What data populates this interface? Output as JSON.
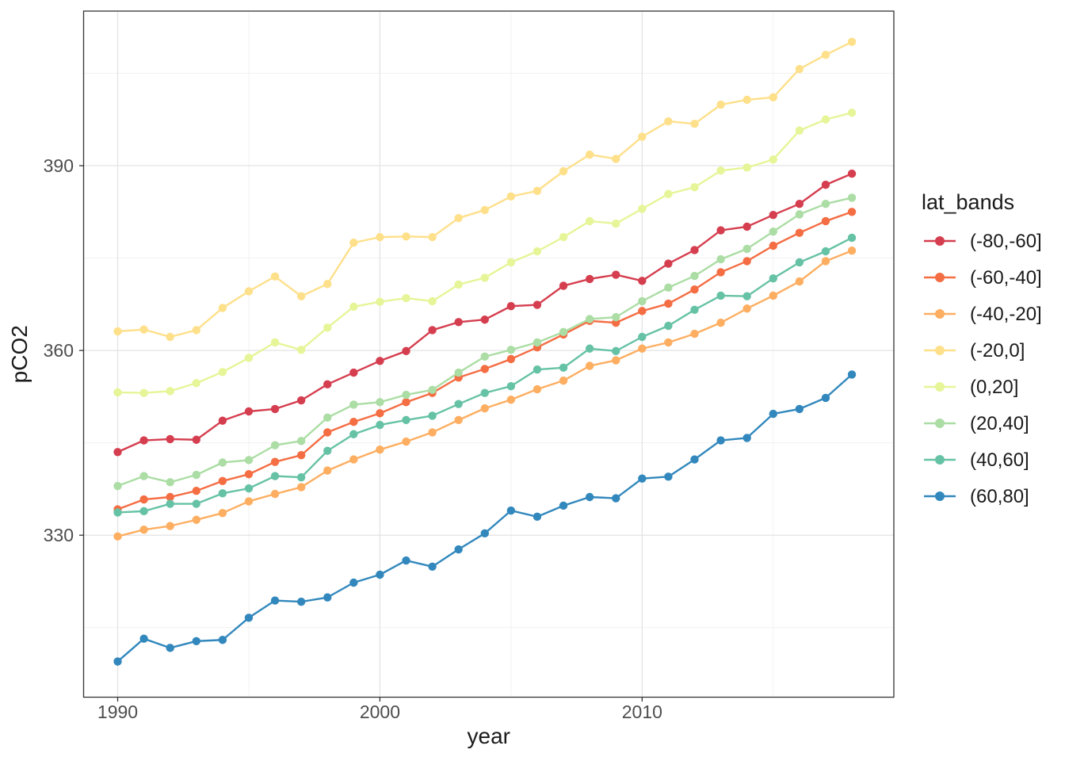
{
  "chart_data": {
    "type": "line",
    "title": "",
    "xlabel": "year",
    "ylabel": "pCO2",
    "legend_title": "lat_bands",
    "legend_position": "right",
    "grid": "major+minor",
    "x_ticks": [
      1990,
      2000,
      2010
    ],
    "x_tick_labels": [
      "1990",
      "2000",
      "2010"
    ],
    "y_ticks": [
      330,
      360,
      390
    ],
    "y_tick_labels": [
      "330",
      "360",
      "390"
    ],
    "x_minor_ticks": [
      1995,
      2005,
      2015
    ],
    "y_minor_ticks": [
      315,
      345,
      375,
      405
    ],
    "xlim": [
      1988.7,
      2019.6
    ],
    "ylim": [
      303.7,
      415.1
    ],
    "x": [
      1990,
      1991,
      1992,
      1993,
      1994,
      1995,
      1996,
      1997,
      1998,
      1999,
      2000,
      2001,
      2002,
      2003,
      2004,
      2005,
      2006,
      2007,
      2008,
      2009,
      2010,
      2011,
      2012,
      2013,
      2014,
      2015,
      2016,
      2017,
      2018
    ],
    "series": [
      {
        "name": "(-80,-60]",
        "color": "#d53e4f",
        "values": [
          343.5,
          345.4,
          345.6,
          345.5,
          348.6,
          350.1,
          350.5,
          351.9,
          354.5,
          356.4,
          358.3,
          359.9,
          363.3,
          364.6,
          365.0,
          367.2,
          367.4,
          370.5,
          371.6,
          372.3,
          371.3,
          374.1,
          376.3,
          379.5,
          380.1,
          382.0,
          383.8,
          386.9,
          388.7
        ]
      },
      {
        "name": "(-60,-40]",
        "color": "#f46d43",
        "values": [
          334.2,
          335.8,
          336.2,
          337.2,
          338.8,
          339.9,
          341.9,
          343.0,
          346.7,
          348.4,
          349.8,
          351.6,
          353.1,
          355.6,
          357.0,
          358.6,
          360.5,
          362.6,
          364.8,
          364.5,
          366.4,
          367.6,
          369.9,
          372.7,
          374.5,
          377.0,
          379.1,
          381.0,
          382.5
        ]
      },
      {
        "name": "(-40,-20]",
        "color": "#fdae61",
        "values": [
          329.8,
          330.9,
          331.5,
          332.5,
          333.6,
          335.5,
          336.7,
          337.8,
          340.5,
          342.3,
          343.9,
          345.2,
          346.7,
          348.7,
          350.6,
          352.0,
          353.7,
          355.1,
          357.5,
          358.4,
          360.3,
          361.3,
          362.7,
          364.5,
          366.8,
          368.9,
          371.2,
          374.5,
          376.2
        ]
      },
      {
        "name": "(-20,0]",
        "color": "#fee08b",
        "values": [
          363.1,
          363.4,
          362.2,
          363.3,
          366.9,
          369.6,
          372.0,
          368.8,
          370.8,
          377.5,
          378.4,
          378.5,
          378.4,
          381.5,
          382.8,
          385.0,
          385.9,
          389.1,
          391.8,
          391.1,
          394.7,
          397.2,
          396.8,
          399.9,
          400.7,
          401.1,
          405.7,
          408.0,
          410.1
        ]
      },
      {
        "name": "(0,20]",
        "color": "#e6f598",
        "values": [
          353.2,
          353.1,
          353.4,
          354.7,
          356.5,
          358.8,
          361.3,
          360.1,
          363.7,
          367.1,
          367.9,
          368.5,
          368.0,
          370.7,
          371.8,
          374.3,
          376.1,
          378.4,
          381.0,
          380.6,
          383.0,
          385.4,
          386.5,
          389.2,
          389.7,
          391.0,
          395.7,
          397.5,
          398.6
        ]
      },
      {
        "name": "(20,40]",
        "color": "#abdda4",
        "values": [
          338.0,
          339.6,
          338.6,
          339.8,
          341.8,
          342.2,
          344.6,
          345.3,
          349.1,
          351.2,
          351.6,
          352.8,
          353.6,
          356.4,
          359.0,
          360.1,
          361.3,
          363.0,
          365.1,
          365.4,
          368.0,
          370.2,
          372.1,
          374.8,
          376.5,
          379.3,
          382.1,
          383.8,
          384.8
        ]
      },
      {
        "name": "(40,60]",
        "color": "#66c2a5",
        "values": [
          333.7,
          333.9,
          335.1,
          335.1,
          336.8,
          337.6,
          339.6,
          339.4,
          343.7,
          346.4,
          347.9,
          348.7,
          349.4,
          351.3,
          353.1,
          354.2,
          356.9,
          357.2,
          360.3,
          359.9,
          362.2,
          364.0,
          366.6,
          368.9,
          368.8,
          371.7,
          374.3,
          376.1,
          378.3
        ]
      },
      {
        "name": "(60,80]",
        "color": "#3288bd",
        "values": [
          309.5,
          313.2,
          311.7,
          312.8,
          313.0,
          316.6,
          319.4,
          319.2,
          319.9,
          322.3,
          323.6,
          325.9,
          324.9,
          327.7,
          330.3,
          334.0,
          333.0,
          334.8,
          336.2,
          336.0,
          339.2,
          339.5,
          342.3,
          345.4,
          345.8,
          349.7,
          350.5,
          352.3,
          356.1
        ]
      }
    ],
    "style": {
      "panel_border": "#333333",
      "grid_major": "#e4e4e4",
      "grid_minor": "#f1f1f1",
      "tick_color": "#333333",
      "tick_label_color": "#4d4d4d",
      "title_color": "#1a1a1a",
      "background": "#ffffff"
    }
  }
}
